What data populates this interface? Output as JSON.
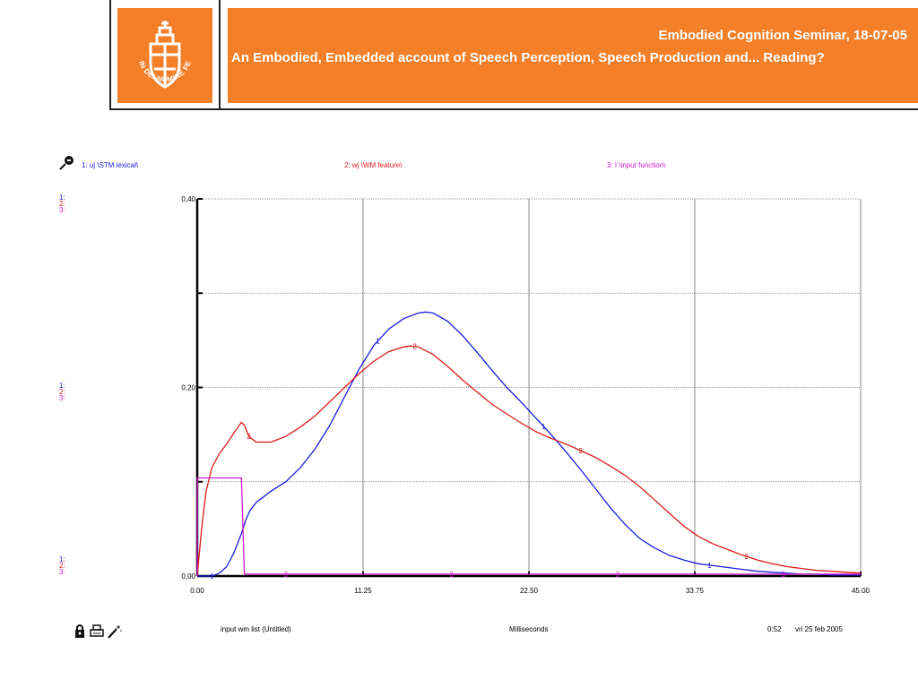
{
  "header": {
    "line1": "Embodied Cognition Seminar, 18-07-05",
    "line2": "An Embodied, Embedded account of Speech Perception, Speech Production and... Reading?",
    "logo_text": "IN DEI NOMINE FELICITER"
  },
  "colors": {
    "orange": "#f47f29",
    "series1": "#1a1adc",
    "series2": "#dc1a1a",
    "series3": "#d21ad2"
  },
  "icons": {
    "pin": "pin-icon",
    "lock": "lock-icon",
    "print": "print-icon",
    "wand": "wand-icon"
  },
  "scale_labels": [
    "1:",
    "2:",
    "3:"
  ],
  "footer": {
    "left": "input wm list (Untitled)",
    "center": "Milliseconds",
    "time": "0:52",
    "date": "vri 25 feb 2005"
  },
  "chart_data": {
    "type": "line",
    "xlabel": "Milliseconds",
    "xlim": [
      0,
      45
    ],
    "ylim": [
      0,
      0.4
    ],
    "x_ticks": [
      0,
      11.25,
      22.5,
      33.75,
      45
    ],
    "x_tick_labels": [
      "0.00",
      "11.25",
      "22.50",
      "33.75",
      "45.00"
    ],
    "y_ticks": [
      0,
      0.2,
      0.4
    ],
    "y_tick_labels": [
      "0,00",
      "0,20",
      "0,40"
    ],
    "grid": true,
    "series": [
      {
        "name": "1: uj \\STM lexical\\",
        "marker": "1",
        "color": "#1a1adc",
        "x": [
          0,
          1,
          1.5,
          2,
          2.5,
          3,
          3.3,
          3.6,
          4,
          5,
          6,
          7,
          8,
          9,
          10,
          11,
          12,
          13,
          14,
          15,
          15.5,
          16,
          17,
          18,
          19,
          20,
          21,
          22,
          23,
          24,
          25,
          26,
          27,
          28,
          29,
          30,
          31,
          32,
          33,
          34,
          35,
          36,
          37,
          38,
          39,
          40,
          41,
          42,
          43,
          44,
          45
        ],
        "y": [
          0,
          0,
          0.003,
          0.01,
          0.025,
          0.045,
          0.06,
          0.07,
          0.078,
          0.09,
          0.1,
          0.115,
          0.135,
          0.16,
          0.19,
          0.22,
          0.245,
          0.262,
          0.273,
          0.279,
          0.28,
          0.279,
          0.27,
          0.255,
          0.237,
          0.218,
          0.2,
          0.184,
          0.167,
          0.15,
          0.132,
          0.113,
          0.093,
          0.073,
          0.055,
          0.04,
          0.03,
          0.022,
          0.017,
          0.013,
          0.011,
          0.009,
          0.007,
          0.005,
          0.004,
          0.003,
          0.002,
          0.002,
          0.001,
          0.001,
          0.001
        ]
      },
      {
        "name": "2: wj \\WM feature\\",
        "marker": "2",
        "color": "#dc1a1a",
        "x": [
          0,
          0.3,
          0.6,
          1,
          1.5,
          2,
          2.5,
          3,
          3.2,
          3.5,
          4,
          5,
          6,
          7,
          8,
          9,
          10,
          11,
          12,
          13,
          14,
          14.5,
          15,
          16,
          17,
          18,
          19,
          20,
          21,
          22,
          23,
          24,
          25,
          26,
          27,
          28,
          29,
          30,
          31,
          32,
          33,
          34,
          35,
          36,
          37,
          38,
          39,
          40,
          41,
          42,
          43,
          44,
          45
        ],
        "y": [
          0,
          0.05,
          0.09,
          0.115,
          0.13,
          0.14,
          0.152,
          0.163,
          0.16,
          0.148,
          0.142,
          0.142,
          0.148,
          0.158,
          0.17,
          0.185,
          0.2,
          0.215,
          0.228,
          0.238,
          0.243,
          0.244,
          0.243,
          0.235,
          0.222,
          0.208,
          0.195,
          0.182,
          0.172,
          0.162,
          0.153,
          0.146,
          0.14,
          0.133,
          0.126,
          0.117,
          0.107,
          0.095,
          0.081,
          0.067,
          0.053,
          0.042,
          0.034,
          0.028,
          0.022,
          0.017,
          0.013,
          0.01,
          0.008,
          0.006,
          0.005,
          0.004,
          0.003
        ]
      },
      {
        "name": "3: I \\input function\\",
        "marker": "3",
        "color": "#d21ad2",
        "x": [
          0,
          0.01,
          3,
          3.2,
          45
        ],
        "y": [
          0,
          0.104,
          0.104,
          0.002,
          0.002
        ]
      }
    ]
  }
}
